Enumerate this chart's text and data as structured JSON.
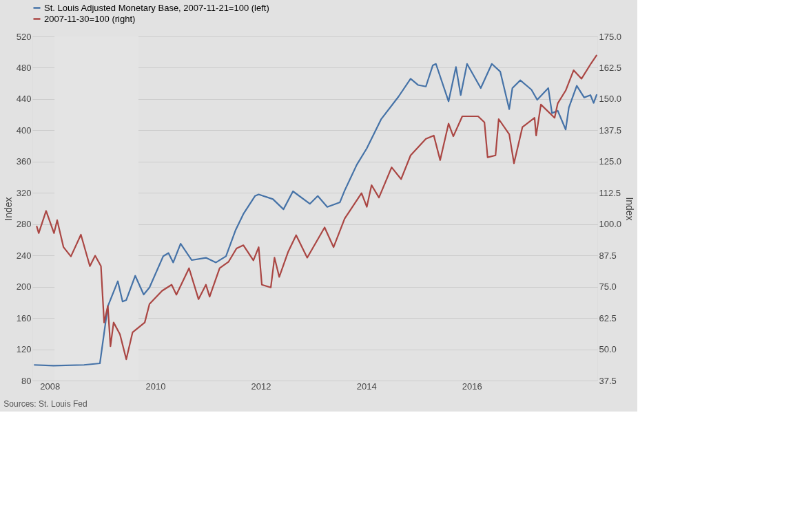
{
  "chart_data": {
    "type": "line",
    "ylabel": "Index",
    "y2label": "Index",
    "xlim": [
      2007.67,
      2018.38
    ],
    "xticks": [
      2008,
      2010,
      2012,
      2014,
      2016
    ],
    "ylim": [
      80,
      520
    ],
    "yticks": [
      80,
      120,
      160,
      200,
      240,
      280,
      320,
      360,
      400,
      440,
      480,
      520
    ],
    "y2lim": [
      37.5,
      175
    ],
    "y2ticks": [
      {
        "value": 37.5,
        "label": "37.5"
      },
      {
        "value": 50,
        "label": "50.0"
      },
      {
        "value": 62.5,
        "label": "62.5"
      },
      {
        "value": 75,
        "label": "75.0"
      },
      {
        "value": 87.5,
        "label": "87.5"
      },
      {
        "value": 100,
        "label": "100.0"
      },
      {
        "value": 112.5,
        "label": "112.5"
      },
      {
        "value": 125,
        "label": "125.0"
      },
      {
        "value": 137.5,
        "label": "137.5"
      },
      {
        "value": 150,
        "label": "150.0"
      },
      {
        "value": 162.5,
        "label": "162.5"
      },
      {
        "value": 175,
        "label": "175.0"
      }
    ],
    "grid": "y",
    "legend": "top",
    "line_style": "solid",
    "bands": [
      {
        "axis": "x",
        "from": 2008.09,
        "to": 2009.68,
        "color": "#e4e4e4"
      }
    ],
    "annotations": [
      "Sources: St. Louis Fed"
    ],
    "series": [
      {
        "name": "St. Louis Adjusted Monetary Base, 2007-11-21=100 (left)",
        "color": "#4572a7",
        "x": [
          2007.7,
          2008.07,
          2008.65,
          2008.95,
          2009.1,
          2009.29,
          2009.38,
          2009.45,
          2009.62,
          2009.78,
          2009.89,
          2010.15,
          2010.25,
          2010.34,
          2010.48,
          2010.69,
          2010.96,
          2011.15,
          2011.34,
          2011.52,
          2011.67,
          2011.89,
          2011.96,
          2012.23,
          2012.43,
          2012.61,
          2012.93,
          2013.08,
          2013.26,
          2013.5,
          2013.59,
          2013.82,
          2014.01,
          2014.28,
          2014.61,
          2014.84,
          2014.98,
          2015.13,
          2015.26,
          2015.32,
          2015.56,
          2015.7,
          2015.79,
          2015.91,
          2016.17,
          2016.38,
          2016.54,
          2016.71,
          2016.77,
          2016.92,
          2017.13,
          2017.24,
          2017.45,
          2017.52,
          2017.63,
          2017.78,
          2017.84,
          2017.99,
          2018.13,
          2018.25,
          2018.31,
          2018.37
        ],
        "values": [
          100,
          99,
          100,
          102,
          175,
          207,
          181,
          183,
          214,
          190,
          199,
          239,
          243,
          231,
          255,
          234,
          237,
          231,
          239,
          272,
          293,
          316,
          318,
          312,
          299,
          322,
          306,
          316,
          302,
          308,
          323,
          356,
          377,
          414,
          443,
          466,
          458,
          456,
          483,
          485,
          437,
          481,
          445,
          485,
          454,
          485,
          475,
          427,
          454,
          464,
          452,
          439,
          454,
          422,
          425,
          401,
          429,
          457,
          442,
          445,
          435,
          446
        ]
      },
      {
        "name": "2007-11-30=100 (right)",
        "color": "#aa4643",
        "axis": "y2",
        "x": [
          2007.75,
          2007.79,
          2007.93,
          2008.08,
          2008.14,
          2008.26,
          2008.4,
          2008.59,
          2008.76,
          2008.86,
          2008.97,
          2009.03,
          2009.1,
          2009.15,
          2009.21,
          2009.33,
          2009.45,
          2009.57,
          2009.8,
          2009.89,
          2010.13,
          2010.31,
          2010.4,
          2010.64,
          2010.82,
          2010.96,
          2011.03,
          2011.22,
          2011.39,
          2011.54,
          2011.67,
          2011.86,
          2011.96,
          2012.02,
          2012.19,
          2012.26,
          2012.35,
          2012.52,
          2012.67,
          2012.88,
          2013.21,
          2013.38,
          2013.59,
          2013.91,
          2014.01,
          2014.1,
          2014.24,
          2014.48,
          2014.66,
          2014.84,
          2015.13,
          2015.28,
          2015.4,
          2015.56,
          2015.65,
          2015.82,
          2016.12,
          2016.24,
          2016.3,
          2016.45,
          2016.51,
          2016.71,
          2016.8,
          2016.96,
          2017.19,
          2017.22,
          2017.31,
          2017.57,
          2017.63,
          2017.78,
          2017.93,
          2018.08,
          2018.26,
          2018.37
        ],
        "values": [
          99.3,
          96.4,
          105.3,
          96.4,
          101.6,
          90.8,
          87.1,
          95.8,
          83.2,
          87.4,
          83.2,
          60.7,
          67.3,
          51.2,
          60.7,
          56.0,
          46.0,
          56.8,
          60.7,
          68.1,
          73.4,
          75.8,
          71.8,
          82.4,
          70.0,
          75.8,
          71.0,
          82.4,
          85.0,
          90.3,
          91.6,
          85.5,
          90.8,
          75.8,
          74.7,
          86.6,
          78.9,
          89.0,
          95.6,
          86.6,
          98.7,
          90.8,
          102.2,
          112.4,
          106.9,
          115.6,
          110.6,
          122.7,
          118.0,
          127.5,
          134.1,
          135.4,
          125.6,
          140.2,
          135.1,
          143.1,
          143.1,
          140.7,
          126.7,
          127.5,
          142.0,
          135.9,
          124.3,
          138.8,
          142.5,
          135.4,
          147.8,
          142.5,
          148.3,
          153.4,
          161.5,
          158.1,
          164.2,
          167.6
        ]
      }
    ]
  }
}
